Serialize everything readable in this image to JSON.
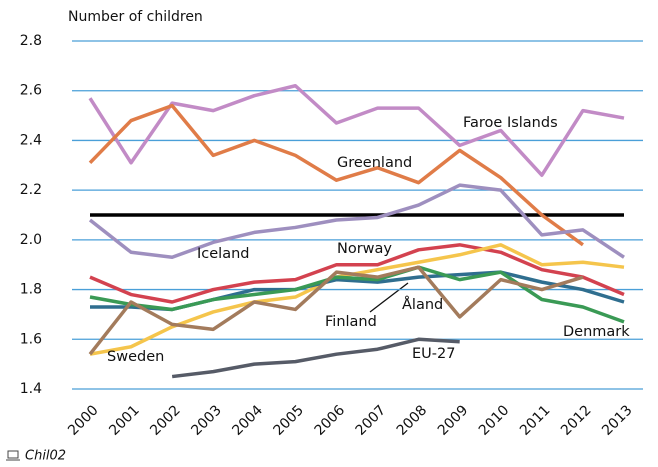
{
  "chart_data": {
    "type": "line",
    "y_label": "Number of children",
    "categories": [
      "2000",
      "2001",
      "2002",
      "2003",
      "2004",
      "2005",
      "2006",
      "2007",
      "2008",
      "2009",
      "2010",
      "2011",
      "2012",
      "2013"
    ],
    "reference_line": 2.1,
    "series": [
      {
        "name": "Faroe Islands",
        "color": "#c28bc6",
        "values": [
          2.57,
          2.31,
          2.55,
          2.52,
          2.58,
          2.62,
          2.47,
          2.53,
          2.53,
          2.38,
          2.44,
          2.26,
          2.52,
          2.49
        ]
      },
      {
        "name": "Greenland",
        "color": "#e07c48",
        "values": [
          2.31,
          2.48,
          2.54,
          2.34,
          2.4,
          2.34,
          2.24,
          2.29,
          2.23,
          2.36,
          2.25,
          2.1,
          1.98,
          null
        ]
      },
      {
        "name": "Iceland",
        "color": "#9e8fbf",
        "values": [
          2.08,
          1.95,
          1.93,
          1.99,
          2.03,
          2.05,
          2.08,
          2.09,
          2.14,
          2.22,
          2.2,
          2.02,
          2.04,
          1.93
        ]
      },
      {
        "name": "Norway",
        "color": "#d3424f",
        "values": [
          1.85,
          1.78,
          1.75,
          1.8,
          1.83,
          1.84,
          1.9,
          1.9,
          1.96,
          1.98,
          1.95,
          1.88,
          1.85,
          1.78
        ]
      },
      {
        "name": "Sweden",
        "color": "#f5c54c",
        "values": [
          1.54,
          1.57,
          1.65,
          1.71,
          1.75,
          1.77,
          1.85,
          1.88,
          1.91,
          1.94,
          1.98,
          1.9,
          1.91,
          1.89
        ]
      },
      {
        "name": "Finland",
        "color": "#2f6e8f",
        "values": [
          1.73,
          1.73,
          1.72,
          1.76,
          1.8,
          1.8,
          1.84,
          1.83,
          1.85,
          1.86,
          1.87,
          1.83,
          1.8,
          1.75
        ]
      },
      {
        "name": "Denmark",
        "color": "#3a9a55",
        "values": [
          1.77,
          1.74,
          1.72,
          1.76,
          1.78,
          1.8,
          1.85,
          1.84,
          1.89,
          1.84,
          1.87,
          1.76,
          1.73,
          1.67
        ]
      },
      {
        "name": "Åland",
        "color": "#a37b5c",
        "values": [
          1.54,
          1.75,
          1.66,
          1.64,
          1.75,
          1.72,
          1.87,
          1.85,
          1.89,
          1.69,
          1.84,
          1.8,
          1.85,
          null
        ]
      },
      {
        "name": "EU-27",
        "color": "#565b67",
        "values": [
          null,
          null,
          1.45,
          1.47,
          1.5,
          1.51,
          1.54,
          1.56,
          1.6,
          1.59,
          null,
          null,
          null,
          null
        ]
      }
    ],
    "ylim": [
      1.4,
      2.8
    ],
    "yticks": [
      {
        "value": 1.4,
        "label": "1.4"
      },
      {
        "value": 1.6,
        "label": "1.6"
      },
      {
        "value": 1.8,
        "label": "1.8"
      },
      {
        "value": 2.0,
        "label": "2.0"
      },
      {
        "value": 2.2,
        "label": "2.2"
      },
      {
        "value": 2.4,
        "label": "2.4"
      },
      {
        "value": 2.6,
        "label": "2.6"
      },
      {
        "value": 2.8,
        "label": "2.8"
      }
    ],
    "grid": true
  },
  "footer": "Chil02"
}
